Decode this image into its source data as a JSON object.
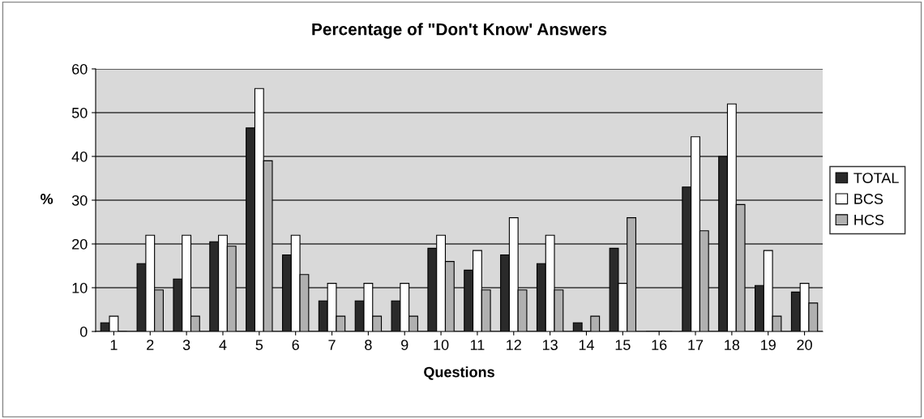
{
  "chart_data": {
    "type": "bar",
    "title": "Percentage of \"Don't Know' Answers",
    "xlabel": "Questions",
    "ylabel": "%",
    "categories": [
      "1",
      "2",
      "3",
      "4",
      "5",
      "6",
      "7",
      "8",
      "9",
      "10",
      "11",
      "12",
      "13",
      "14",
      "15",
      "16",
      "17",
      "18",
      "19",
      "20"
    ],
    "series": [
      {
        "name": "TOTAL",
        "color": "#2a2a2a",
        "values": [
          2,
          15.5,
          12,
          20.5,
          46.5,
          17.5,
          7,
          7,
          7,
          19,
          14,
          17.5,
          15.5,
          2,
          19,
          0,
          33,
          40,
          10.5,
          9
        ]
      },
      {
        "name": "BCS",
        "color": "#ffffff",
        "values": [
          3.5,
          22,
          22,
          22,
          55.5,
          22,
          11,
          11,
          11,
          22,
          18.5,
          26,
          22,
          0,
          11,
          0,
          44.5,
          52,
          18.5,
          11
        ]
      },
      {
        "name": "HCS",
        "color": "#b0b0b0",
        "values": [
          0,
          9.5,
          3.5,
          19.5,
          39,
          13,
          3.5,
          3.5,
          3.5,
          16,
          9.5,
          9.5,
          9.5,
          3.5,
          26,
          0,
          23,
          29,
          3.5,
          6.5
        ]
      }
    ],
    "ylim": [
      0,
      60
    ],
    "yticks": [
      0,
      10,
      20,
      30,
      40,
      50,
      60
    ],
    "grid": "y",
    "legend": "right"
  }
}
